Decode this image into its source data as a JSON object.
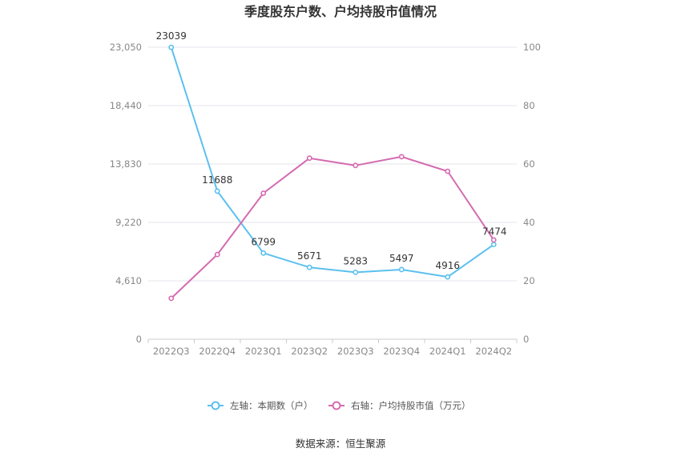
{
  "chart_data": {
    "type": "line",
    "title": "季度股东户数、户均持股市值情况",
    "categories": [
      "2022Q3",
      "2022Q4",
      "2023Q1",
      "2023Q2",
      "2023Q3",
      "2023Q4",
      "2024Q1",
      "2024Q2"
    ],
    "series": [
      {
        "name": "左轴：本期数（户）",
        "axis": "left",
        "color": "#5bc0ef",
        "values": [
          23039,
          11688,
          6799,
          5671,
          5283,
          5497,
          4916,
          7474
        ],
        "labels": [
          "23039",
          "11688",
          "6799",
          "5671",
          "5283",
          "5497",
          "4916",
          "7474"
        ]
      },
      {
        "name": "右轴：户均持股市值（万元）",
        "axis": "right",
        "color": "#d46bb0",
        "values": [
          14,
          29,
          50,
          62,
          59.5,
          62.5,
          57.5,
          34
        ]
      }
    ],
    "y_left": {
      "min": 0,
      "max": 23050,
      "ticks": [
        0,
        4610,
        9220,
        13830,
        18440,
        23050
      ],
      "tick_labels": [
        "0",
        "4,610",
        "9,220",
        "13,830",
        "18,440",
        "23,050"
      ]
    },
    "y_right": {
      "min": 0,
      "max": 100,
      "ticks": [
        0,
        20,
        40,
        60,
        80,
        100
      ],
      "tick_labels": [
        "0",
        "20",
        "40",
        "60",
        "80",
        "100"
      ]
    },
    "grid": true,
    "legend_position": "bottom"
  },
  "footer": {
    "source": "数据来源：恒生聚源"
  }
}
